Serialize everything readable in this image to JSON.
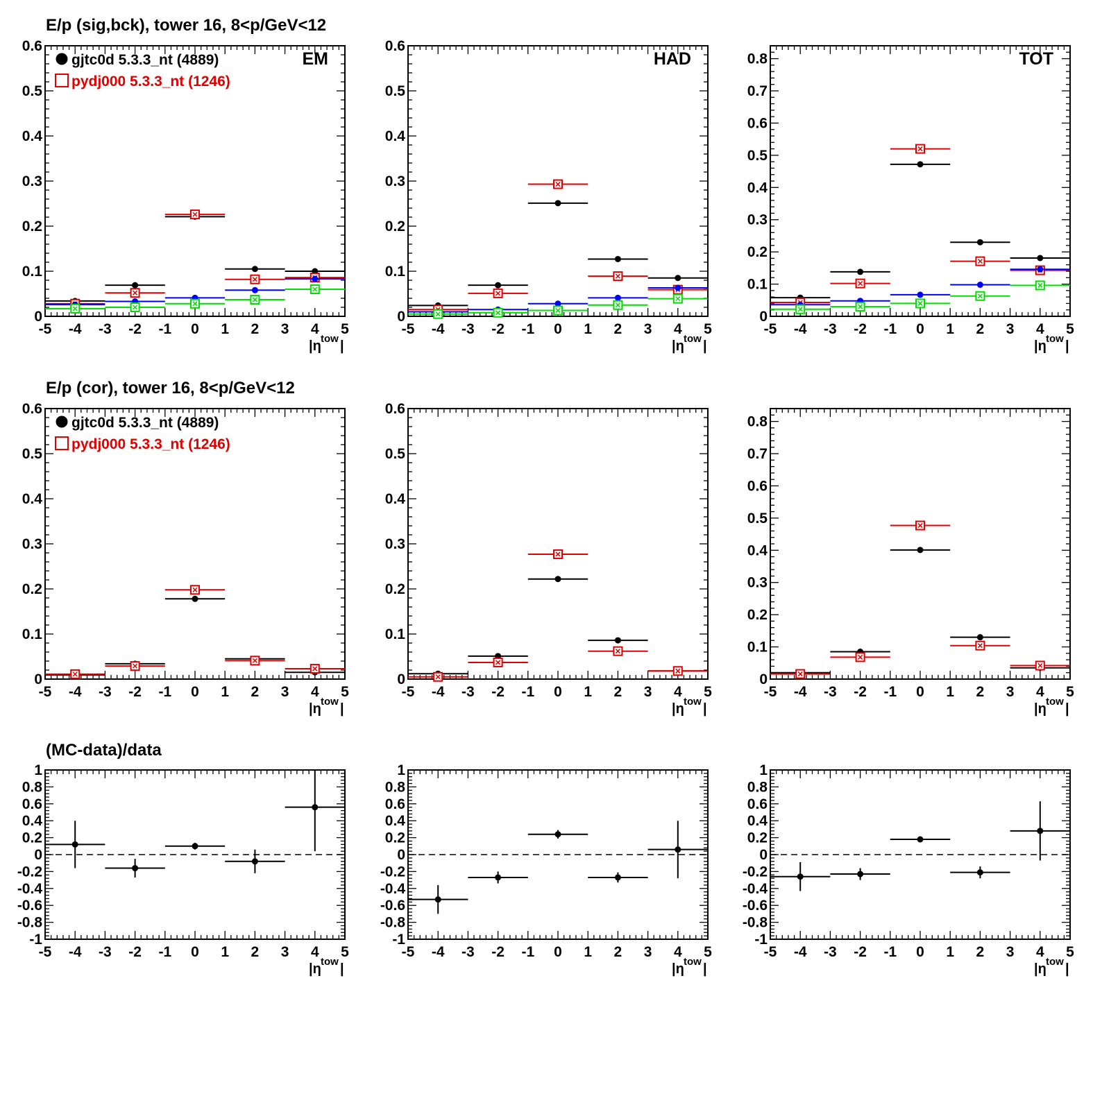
{
  "rows": [
    {
      "title": "E/p (sig,bck), tower 16,  8<p/GeV<12"
    },
    {
      "title": "E/p (cor), tower 16,  8<p/GeV<12"
    },
    {
      "title": "(MC-data)/data"
    }
  ],
  "legend": [
    {
      "label": "gjtc0d 5.3.3_nt (4889)",
      "color": "#000000",
      "marker": "filled-circle"
    },
    {
      "label": "pydj000 5.3.3_nt (1246)",
      "color": "#e00000",
      "marker": "open-square"
    }
  ],
  "colors": {
    "data": "#000000",
    "mc": "#e00000",
    "data_bck": "#0000ff",
    "mc_bck": "#00dd00"
  },
  "chart_data": [
    {
      "id": "r0c0",
      "type": "scatter",
      "row": 0,
      "col": 0,
      "panel_label": "EM",
      "xlabel": "|η^tow|",
      "xlim": [
        -5,
        5
      ],
      "ylim": [
        0,
        0.6
      ],
      "xticks": [
        -5,
        -4,
        -3,
        -2,
        -1,
        0,
        1,
        2,
        3,
        4,
        5
      ],
      "yticks": [
        0,
        0.1,
        0.2,
        0.3,
        0.4,
        0.5,
        0.6
      ],
      "ytick_dp": 1,
      "show_legend": true,
      "grid": false,
      "series": [
        {
          "name": "gjtc0d 5.3.3_nt (4889)",
          "role": "data",
          "x": [
            -4,
            -2,
            0,
            2,
            4
          ],
          "y": [
            0.034,
            0.069,
            0.221,
            0.105,
            0.1
          ]
        },
        {
          "name": "pydj000 5.3.3_nt (1246)",
          "role": "mc",
          "x": [
            -4,
            -2,
            0,
            2,
            4
          ],
          "y": [
            0.028,
            0.052,
            0.226,
            0.082,
            0.086
          ]
        },
        {
          "role": "data_bck",
          "x": [
            -4,
            -2,
            0,
            2,
            4
          ],
          "y": [
            0.026,
            0.033,
            0.041,
            0.058,
            0.083
          ]
        },
        {
          "role": "mc_bck",
          "x": [
            -4,
            -2,
            0,
            2,
            4
          ],
          "y": [
            0.017,
            0.02,
            0.028,
            0.037,
            0.06
          ]
        }
      ]
    },
    {
      "id": "r0c1",
      "type": "scatter",
      "row": 0,
      "col": 1,
      "panel_label": "HAD",
      "xlabel": "|η^tow|",
      "xlim": [
        -5,
        5
      ],
      "ylim": [
        0,
        0.6
      ],
      "xticks": [
        -5,
        -4,
        -3,
        -2,
        -1,
        0,
        1,
        2,
        3,
        4,
        5
      ],
      "yticks": [
        0,
        0.1,
        0.2,
        0.3,
        0.4,
        0.5,
        0.6
      ],
      "ytick_dp": 1,
      "show_legend": false,
      "grid": false,
      "series": [
        {
          "role": "data",
          "x": [
            -4,
            -2,
            0,
            2,
            4
          ],
          "y": [
            0.024,
            0.069,
            0.251,
            0.127,
            0.085
          ]
        },
        {
          "role": "mc",
          "x": [
            -4,
            -2,
            0,
            2,
            4
          ],
          "y": [
            0.015,
            0.051,
            0.293,
            0.089,
            0.059
          ]
        },
        {
          "role": "data_bck",
          "x": [
            -4,
            -2,
            0,
            2,
            4
          ],
          "y": [
            0.01,
            0.015,
            0.028,
            0.041,
            0.063
          ]
        },
        {
          "role": "mc_bck",
          "x": [
            -4,
            -2,
            0,
            2,
            4
          ],
          "y": [
            0.005,
            0.008,
            0.013,
            0.025,
            0.039
          ]
        }
      ]
    },
    {
      "id": "r0c2",
      "type": "scatter",
      "row": 0,
      "col": 2,
      "panel_label": "TOT",
      "xlabel": "|η^tow|",
      "xlim": [
        -5,
        5
      ],
      "ylim": [
        0,
        0.84
      ],
      "xticks": [
        -5,
        -4,
        -3,
        -2,
        -1,
        0,
        1,
        2,
        3,
        4,
        5
      ],
      "yticks": [
        0,
        0.1,
        0.2,
        0.3,
        0.4,
        0.5,
        0.6,
        0.7,
        0.8
      ],
      "ytick_dp": 1,
      "show_legend": false,
      "grid": false,
      "series": [
        {
          "role": "data",
          "x": [
            -4,
            -2,
            0,
            2,
            4
          ],
          "y": [
            0.058,
            0.138,
            0.472,
            0.23,
            0.181
          ]
        },
        {
          "role": "mc",
          "x": [
            -4,
            -2,
            0,
            2,
            4
          ],
          "y": [
            0.043,
            0.102,
            0.52,
            0.171,
            0.143
          ]
        },
        {
          "role": "data_bck",
          "x": [
            -4,
            -2,
            0,
            2,
            4
          ],
          "y": [
            0.036,
            0.048,
            0.067,
            0.098,
            0.146
          ]
        },
        {
          "role": "mc_bck",
          "x": [
            -4,
            -2,
            0,
            2,
            4
          ],
          "y": [
            0.022,
            0.03,
            0.04,
            0.063,
            0.096
          ]
        }
      ]
    },
    {
      "id": "r1c0",
      "type": "scatter",
      "row": 1,
      "col": 0,
      "xlabel": "|η^tow|",
      "xlim": [
        -5,
        5
      ],
      "ylim": [
        0,
        0.6
      ],
      "xticks": [
        -5,
        -4,
        -3,
        -2,
        -1,
        0,
        1,
        2,
        3,
        4,
        5
      ],
      "yticks": [
        0,
        0.1,
        0.2,
        0.3,
        0.4,
        0.5,
        0.6
      ],
      "ytick_dp": 1,
      "show_legend": true,
      "grid": false,
      "series": [
        {
          "name": "gjtc0d 5.3.3_nt (4889)",
          "role": "data",
          "x": [
            -4,
            -2,
            0,
            2,
            4
          ],
          "y": [
            0.009,
            0.034,
            0.178,
            0.045,
            0.015
          ]
        },
        {
          "name": "pydj000 5.3.3_nt (1246)",
          "role": "mc",
          "x": [
            -4,
            -2,
            0,
            2,
            4
          ],
          "y": [
            0.011,
            0.029,
            0.198,
            0.041,
            0.023
          ]
        }
      ]
    },
    {
      "id": "r1c1",
      "type": "scatter",
      "row": 1,
      "col": 1,
      "xlabel": "|η^tow|",
      "xlim": [
        -5,
        5
      ],
      "ylim": [
        0,
        0.6
      ],
      "xticks": [
        -5,
        -4,
        -3,
        -2,
        -1,
        0,
        1,
        2,
        3,
        4,
        5
      ],
      "yticks": [
        0,
        0.1,
        0.2,
        0.3,
        0.4,
        0.5,
        0.6
      ],
      "ytick_dp": 1,
      "show_legend": false,
      "grid": false,
      "series": [
        {
          "role": "data",
          "x": [
            -4,
            -2,
            0,
            2,
            4
          ],
          "y": [
            0.012,
            0.051,
            0.222,
            0.086,
            0.018
          ]
        },
        {
          "role": "mc",
          "x": [
            -4,
            -2,
            0,
            2,
            4
          ],
          "y": [
            0.005,
            0.037,
            0.277,
            0.062,
            0.018
          ]
        }
      ]
    },
    {
      "id": "r1c2",
      "type": "scatter",
      "row": 1,
      "col": 2,
      "xlabel": "|η^tow|",
      "xlim": [
        -5,
        5
      ],
      "ylim": [
        0,
        0.84
      ],
      "xticks": [
        -5,
        -4,
        -3,
        -2,
        -1,
        0,
        1,
        2,
        3,
        4,
        5
      ],
      "yticks": [
        0,
        0.1,
        0.2,
        0.3,
        0.4,
        0.5,
        0.6,
        0.7,
        0.8
      ],
      "ytick_dp": 1,
      "show_legend": false,
      "grid": false,
      "series": [
        {
          "role": "data",
          "x": [
            -4,
            -2,
            0,
            2,
            4
          ],
          "y": [
            0.02,
            0.085,
            0.401,
            0.13,
            0.035
          ]
        },
        {
          "role": "mc",
          "x": [
            -4,
            -2,
            0,
            2,
            4
          ],
          "y": [
            0.016,
            0.068,
            0.477,
            0.104,
            0.042
          ]
        }
      ]
    },
    {
      "id": "r2c0",
      "type": "scatter",
      "row": 2,
      "col": 0,
      "xlabel": "|η^tow|",
      "xlim": [
        -5,
        5
      ],
      "ylim": [
        -1,
        1
      ],
      "xticks": [
        -5,
        -4,
        -3,
        -2,
        -1,
        0,
        1,
        2,
        3,
        4,
        5
      ],
      "yticks": [
        -1,
        -0.8,
        -0.6,
        -0.4,
        -0.2,
        0,
        0.2,
        0.4,
        0.6,
        0.8,
        1
      ],
      "ytick_dp": 1,
      "show_legend": false,
      "grid": false,
      "zero_line": true,
      "series": [
        {
          "role": "data",
          "x": [
            -4,
            -2,
            0,
            2,
            4
          ],
          "y": [
            0.12,
            -0.16,
            0.1,
            -0.08,
            0.56
          ],
          "yerr": [
            0.28,
            0.11,
            0.04,
            0.14,
            0.52
          ]
        }
      ]
    },
    {
      "id": "r2c1",
      "type": "scatter",
      "row": 2,
      "col": 1,
      "xlabel": "|η^tow|",
      "xlim": [
        -5,
        5
      ],
      "ylim": [
        -1,
        1
      ],
      "xticks": [
        -5,
        -4,
        -3,
        -2,
        -1,
        0,
        1,
        2,
        3,
        4,
        5
      ],
      "yticks": [
        -1,
        -0.8,
        -0.6,
        -0.4,
        -0.2,
        0,
        0.2,
        0.4,
        0.6,
        0.8,
        1
      ],
      "ytick_dp": 1,
      "show_legend": false,
      "grid": false,
      "zero_line": true,
      "series": [
        {
          "role": "data",
          "x": [
            -4,
            -2,
            0,
            2,
            4
          ],
          "y": [
            -0.53,
            -0.27,
            0.24,
            -0.27,
            0.06
          ],
          "yerr": [
            0.17,
            0.07,
            0.05,
            0.06,
            0.34
          ]
        }
      ]
    },
    {
      "id": "r2c2",
      "type": "scatter",
      "row": 2,
      "col": 2,
      "xlabel": "|η^tow|",
      "xlim": [
        -5,
        5
      ],
      "ylim": [
        -1,
        1
      ],
      "xticks": [
        -5,
        -4,
        -3,
        -2,
        -1,
        0,
        1,
        2,
        3,
        4,
        5
      ],
      "yticks": [
        -1,
        -0.8,
        -0.6,
        -0.4,
        -0.2,
        0,
        0.2,
        0.4,
        0.6,
        0.8,
        1
      ],
      "ytick_dp": 1,
      "show_legend": false,
      "grid": false,
      "zero_line": true,
      "series": [
        {
          "role": "data",
          "x": [
            -4,
            -2,
            0,
            2,
            4
          ],
          "y": [
            -0.26,
            -0.23,
            0.18,
            -0.21,
            0.28
          ],
          "yerr": [
            0.17,
            0.07,
            0.03,
            0.07,
            0.35
          ]
        }
      ]
    }
  ]
}
